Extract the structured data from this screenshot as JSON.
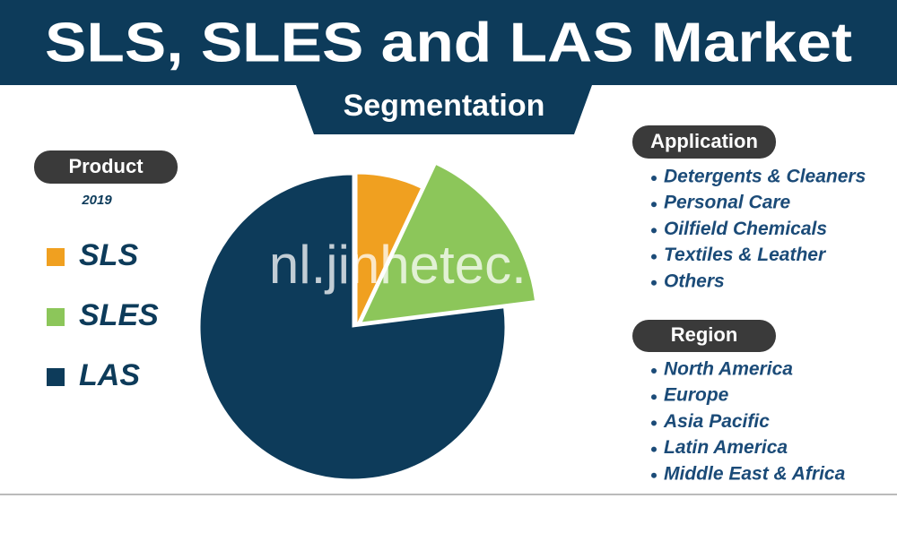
{
  "chart_data": {
    "type": "pie",
    "title": "SLS, SLES and LAS Market",
    "subtitle": "Segmentation",
    "legend_title": "Product",
    "year": "2019",
    "categories": [
      "SLS",
      "SLES",
      "LAS"
    ],
    "values": [
      7,
      16,
      77
    ],
    "colors": [
      "#f0a020",
      "#8cc65a",
      "#0d3b5a"
    ]
  },
  "application": {
    "title": "Application",
    "items": [
      "Detergents & Cleaners",
      "Personal Care",
      "Oilfield Chemicals",
      "Textiles & Leather",
      "Others"
    ]
  },
  "region": {
    "title": "Region",
    "items": [
      "North America",
      "Europe",
      "Asia Pacific",
      "Latin America",
      "Middle East & Africa"
    ]
  },
  "watermark": "nl.jinhetec.com"
}
